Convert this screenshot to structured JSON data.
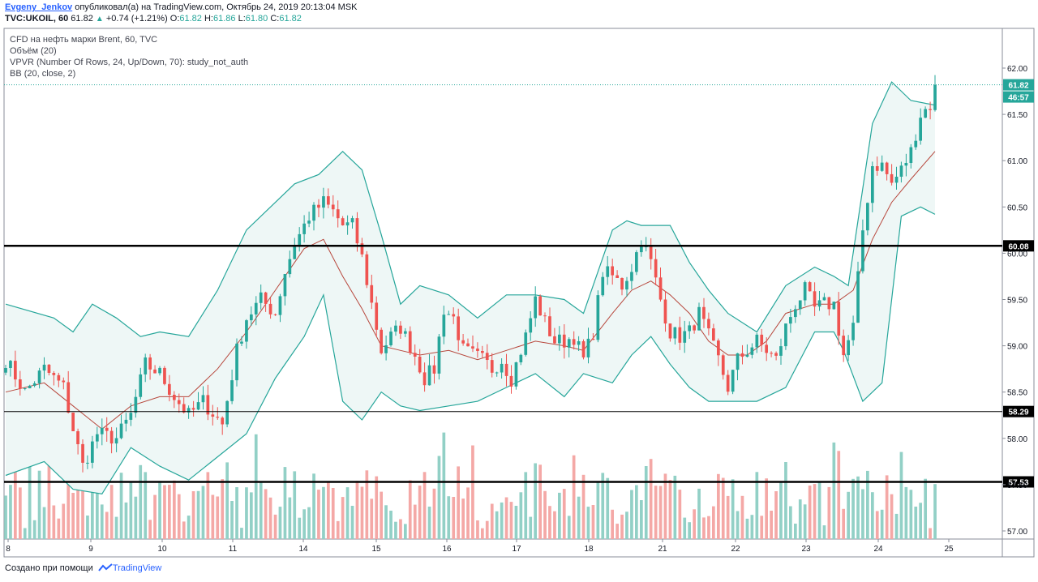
{
  "header": {
    "author": "Evgeny_Jenkov",
    "published_text": "опубликовал(а) на TradingView.com, Октябрь 24, 2019 20:13:04 MSK",
    "symbol": "TVC:UKOIL, 60",
    "last": "61.82",
    "change": "+0.74 (+1.21%)",
    "open_label": "O:",
    "open": "61.82",
    "high_label": "H:",
    "high": "61.86",
    "low_label": "L:",
    "low": "61.80",
    "close_label": "C:",
    "close": "61.82"
  },
  "legend": {
    "title": "CFD на нефть марки Brent, 60, TVC",
    "volume": "Объём (20)",
    "vpvr": "VPVR (Number Of Rows, 24, Up/Down, 70): study_not_auth",
    "bb": "BB (20, close, 2)"
  },
  "footer": {
    "created_text": "Создано при помощи",
    "brand": "TradingView"
  },
  "colors": {
    "up": "#26a69a",
    "down": "#ef5350",
    "bb_band": "#26a69a",
    "bb_basis": "#b7473c",
    "bb_fill": "#eef7f6",
    "last_price": "#26a69a",
    "vol_up": "#92d0c6",
    "vol_down": "#f4a8a6"
  },
  "chart_data": {
    "type": "candlestick",
    "y_axis": {
      "ticks": [
        "62.00",
        "61.50",
        "61.00",
        "60.50",
        "60.00",
        "59.50",
        "59.00",
        "58.50",
        "58.00",
        "57.50",
        "57.00"
      ],
      "range": [
        56.94,
        62.29
      ]
    },
    "x_axis": {
      "ticks": [
        "8",
        "9",
        "10",
        "11",
        "14",
        "15",
        "16",
        "17",
        "18",
        "21",
        "22",
        "23",
        "24",
        "25"
      ]
    },
    "horizontal_levels": [
      {
        "price": 60.08,
        "label": "60.08",
        "style": "thick"
      },
      {
        "price": 58.29,
        "label": "58.29",
        "style": "thin"
      },
      {
        "price": 57.53,
        "label": "57.53",
        "style": "thick"
      }
    ],
    "last_price": {
      "price": 61.82,
      "label": "61.82",
      "countdown": "46:57"
    },
    "close_path": [
      [
        0,
        58.85
      ],
      [
        4,
        58.5
      ],
      [
        8,
        58.75
      ],
      [
        12,
        58.55
      ],
      [
        14,
        58.1
      ],
      [
        16,
        57.7
      ],
      [
        19,
        58.05
      ],
      [
        23,
        58.0
      ],
      [
        26,
        58.25
      ],
      [
        29,
        58.8
      ],
      [
        32,
        58.7
      ],
      [
        35,
        58.45
      ],
      [
        38,
        58.25
      ],
      [
        41,
        58.4
      ],
      [
        45,
        58.15
      ],
      [
        48,
        58.95
      ],
      [
        50,
        59.3
      ],
      [
        53,
        59.5
      ],
      [
        56,
        59.35
      ],
      [
        58,
        59.8
      ],
      [
        60,
        60.1
      ],
      [
        63,
        60.4
      ],
      [
        66,
        60.55
      ],
      [
        68,
        60.45
      ],
      [
        70,
        60.3
      ],
      [
        72,
        60.3
      ],
      [
        74,
        59.95
      ],
      [
        76,
        59.45
      ],
      [
        78,
        58.95
      ],
      [
        80,
        59.1
      ],
      [
        82,
        59.2
      ],
      [
        85,
        58.9
      ],
      [
        87,
        58.65
      ],
      [
        89,
        58.75
      ],
      [
        91,
        59.4
      ],
      [
        93,
        59.3
      ],
      [
        95,
        58.95
      ],
      [
        97,
        58.9
      ],
      [
        99,
        58.85
      ],
      [
        101,
        58.75
      ],
      [
        103,
        58.85
      ],
      [
        105,
        58.65
      ],
      [
        108,
        59.1
      ],
      [
        110,
        59.5
      ],
      [
        112,
        59.25
      ],
      [
        114,
        59.05
      ],
      [
        116,
        59.05
      ],
      [
        118,
        59.1
      ],
      [
        120,
        58.85
      ],
      [
        122,
        59.15
      ],
      [
        124,
        59.8
      ],
      [
        126,
        59.75
      ],
      [
        128,
        59.65
      ],
      [
        130,
        59.85
      ],
      [
        132,
        60.15
      ],
      [
        134,
        59.9
      ],
      [
        136,
        59.5
      ],
      [
        138,
        59.15
      ],
      [
        140,
        59.1
      ],
      [
        142,
        59.15
      ],
      [
        144,
        59.35
      ],
      [
        146,
        59.1
      ],
      [
        148,
        58.85
      ],
      [
        150,
        58.55
      ],
      [
        152,
        58.85
      ],
      [
        154,
        58.95
      ],
      [
        156,
        59.05
      ],
      [
        158,
        58.95
      ],
      [
        160,
        58.85
      ],
      [
        162,
        59.2
      ],
      [
        164,
        59.45
      ],
      [
        166,
        59.6
      ],
      [
        168,
        59.4
      ],
      [
        170,
        59.45
      ],
      [
        172,
        59.45
      ],
      [
        174,
        58.9
      ],
      [
        176,
        59.2
      ],
      [
        178,
        60.25
      ],
      [
        180,
        60.95
      ],
      [
        182,
        60.95
      ],
      [
        184,
        60.75
      ],
      [
        186,
        60.9
      ],
      [
        188,
        61.1
      ],
      [
        190,
        61.5
      ],
      [
        192,
        61.6
      ],
      [
        193,
        61.82
      ]
    ],
    "bb_basis": [
      [
        0,
        58.5
      ],
      [
        8,
        58.6
      ],
      [
        14,
        58.35
      ],
      [
        20,
        58.1
      ],
      [
        26,
        58.35
      ],
      [
        32,
        58.45
      ],
      [
        38,
        58.45
      ],
      [
        44,
        58.75
      ],
      [
        50,
        59.15
      ],
      [
        56,
        59.6
      ],
      [
        62,
        60.05
      ],
      [
        66,
        60.15
      ],
      [
        70,
        59.75
      ],
      [
        74,
        59.4
      ],
      [
        78,
        59.0
      ],
      [
        82,
        58.95
      ],
      [
        86,
        58.9
      ],
      [
        92,
        58.95
      ],
      [
        98,
        58.85
      ],
      [
        104,
        58.95
      ],
      [
        110,
        59.05
      ],
      [
        116,
        59.0
      ],
      [
        120,
        58.95
      ],
      [
        126,
        59.35
      ],
      [
        130,
        59.6
      ],
      [
        134,
        59.7
      ],
      [
        138,
        59.55
      ],
      [
        142,
        59.35
      ],
      [
        146,
        59.05
      ],
      [
        150,
        58.9
      ],
      [
        154,
        58.9
      ],
      [
        158,
        59.05
      ],
      [
        162,
        59.35
      ],
      [
        168,
        59.45
      ],
      [
        172,
        59.45
      ],
      [
        176,
        59.6
      ],
      [
        180,
        60.15
      ],
      [
        184,
        60.55
      ],
      [
        188,
        60.8
      ],
      [
        193,
        61.1
      ]
    ],
    "bb_upper": [
      [
        0,
        59.45
      ],
      [
        10,
        59.3
      ],
      [
        14,
        59.15
      ],
      [
        18,
        59.45
      ],
      [
        23,
        59.3
      ],
      [
        28,
        59.1
      ],
      [
        32,
        59.15
      ],
      [
        38,
        59.1
      ],
      [
        44,
        59.6
      ],
      [
        50,
        60.25
      ],
      [
        55,
        60.5
      ],
      [
        60,
        60.75
      ],
      [
        65,
        60.85
      ],
      [
        70,
        61.1
      ],
      [
        74,
        60.9
      ],
      [
        78,
        60.2
      ],
      [
        82,
        59.45
      ],
      [
        86,
        59.65
      ],
      [
        92,
        59.55
      ],
      [
        98,
        59.3
      ],
      [
        104,
        59.55
      ],
      [
        110,
        59.55
      ],
      [
        116,
        59.5
      ],
      [
        120,
        59.35
      ],
      [
        126,
        60.25
      ],
      [
        129,
        60.35
      ],
      [
        132,
        60.3
      ],
      [
        138,
        60.3
      ],
      [
        142,
        59.9
      ],
      [
        146,
        59.6
      ],
      [
        150,
        59.35
      ],
      [
        156,
        59.15
      ],
      [
        162,
        59.65
      ],
      [
        168,
        59.85
      ],
      [
        172,
        59.75
      ],
      [
        175,
        59.65
      ],
      [
        180,
        61.4
      ],
      [
        184,
        61.85
      ],
      [
        188,
        61.65
      ],
      [
        193,
        61.6
      ]
    ],
    "bb_lower": [
      [
        0,
        57.6
      ],
      [
        8,
        57.75
      ],
      [
        14,
        57.45
      ],
      [
        20,
        57.4
      ],
      [
        26,
        57.9
      ],
      [
        32,
        57.7
      ],
      [
        38,
        57.55
      ],
      [
        44,
        57.8
      ],
      [
        50,
        58.05
      ],
      [
        56,
        58.65
      ],
      [
        62,
        59.1
      ],
      [
        66,
        59.55
      ],
      [
        70,
        58.4
      ],
      [
        74,
        58.2
      ],
      [
        78,
        58.5
      ],
      [
        82,
        58.35
      ],
      [
        86,
        58.3
      ],
      [
        92,
        58.35
      ],
      [
        98,
        58.4
      ],
      [
        104,
        58.55
      ],
      [
        110,
        58.7
      ],
      [
        116,
        58.45
      ],
      [
        120,
        58.7
      ],
      [
        126,
        58.6
      ],
      [
        130,
        58.9
      ],
      [
        134,
        59.1
      ],
      [
        138,
        58.8
      ],
      [
        142,
        58.55
      ],
      [
        146,
        58.4
      ],
      [
        150,
        58.4
      ],
      [
        156,
        58.4
      ],
      [
        162,
        58.55
      ],
      [
        168,
        59.15
      ],
      [
        172,
        59.15
      ],
      [
        174,
        58.95
      ],
      [
        178,
        58.4
      ],
      [
        182,
        58.6
      ],
      [
        186,
        60.4
      ],
      [
        190,
        60.5
      ],
      [
        193,
        60.42
      ]
    ]
  }
}
